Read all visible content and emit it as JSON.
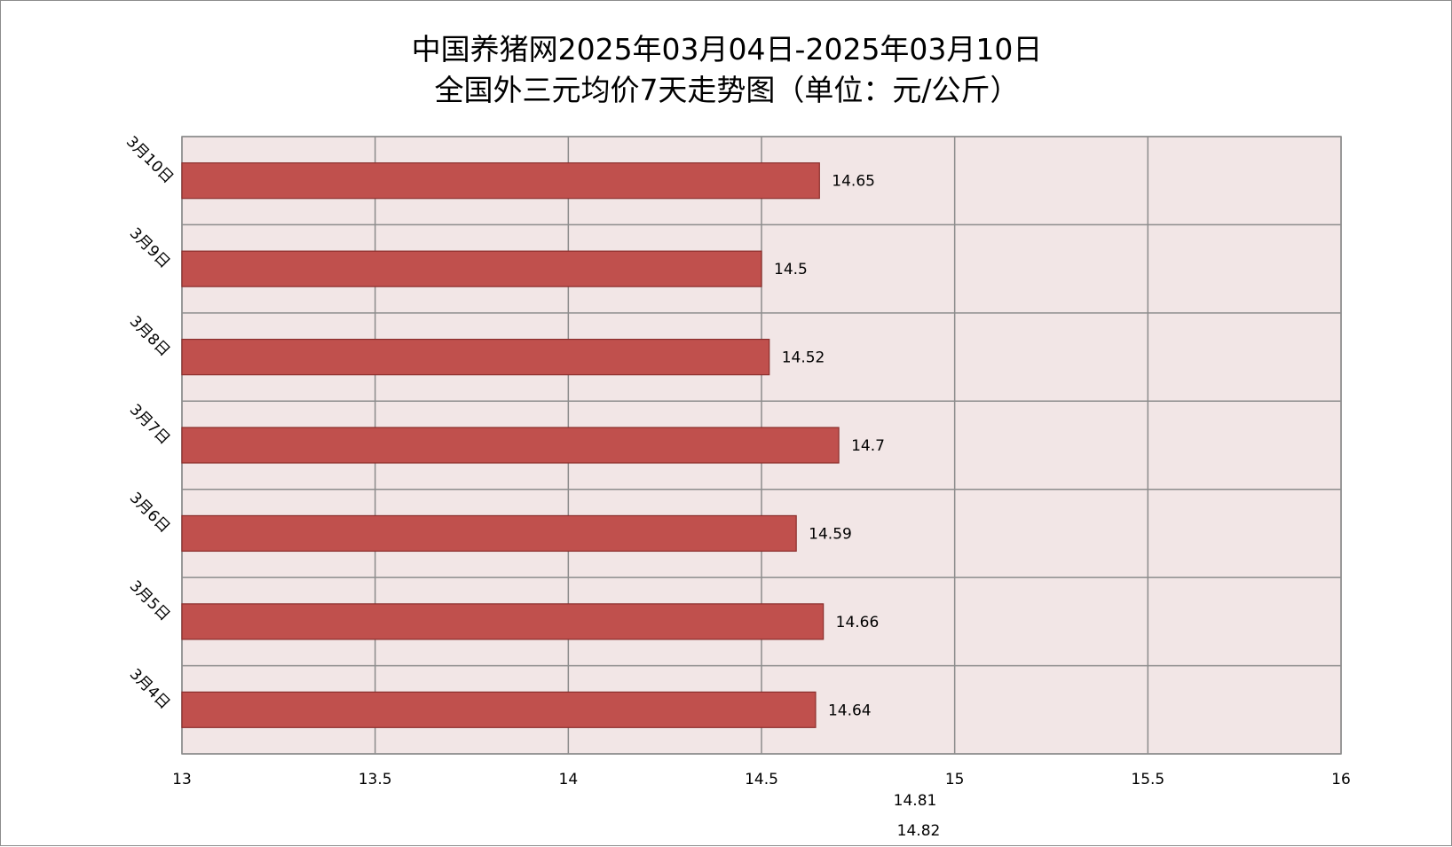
{
  "chart_data": {
    "type": "bar",
    "orientation": "horizontal",
    "title_lines": [
      "中国养猪网2025年03月04日-2025年03月10日",
      "全国外三元均价7天走势图（单位：元/公斤）"
    ],
    "categories": [
      "3月10日",
      "3月9日",
      "3月8日",
      "3月7日",
      "3月6日",
      "3月5日",
      "3月4日"
    ],
    "values": [
      14.65,
      14.5,
      14.52,
      14.7,
      14.59,
      14.66,
      14.64
    ],
    "value_labels": [
      "14.65",
      "14.5",
      "14.52",
      "14.7",
      "14.59",
      "14.66",
      "14.64"
    ],
    "x_ticks": [
      "13",
      "13.5",
      "14",
      "14.5",
      "15",
      "15.5",
      "16"
    ],
    "xlim": [
      13,
      16
    ],
    "extra_labels": [
      "14.81",
      "14.82"
    ],
    "grid": true,
    "legend": "none",
    "colors": {
      "bar_fill": "#c0504d",
      "bar_stroke": "#8b2e2c",
      "plot_background": "#f2e6e6",
      "grid": "#8c8c8c"
    }
  }
}
